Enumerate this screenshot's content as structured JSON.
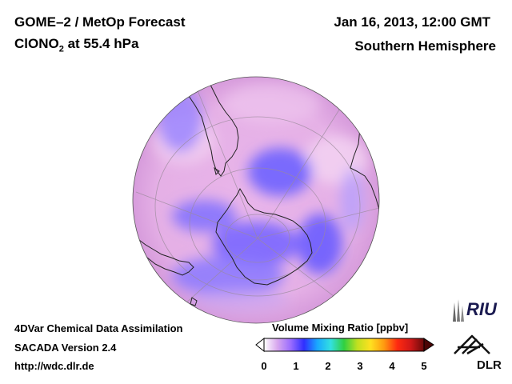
{
  "header": {
    "title_line1": "GOME–2 / MetOp Forecast",
    "title_line2_prefix": "ClONO",
    "title_line2_sub": "2",
    "title_line2_suffix": " at 55.4 hPa",
    "date": "Jan 16, 2013, 12:00 GMT",
    "region": "Southern Hemisphere"
  },
  "footer": {
    "line1": "4DVar Chemical Data Assimilation",
    "line2": "SACADA Version 2.4",
    "line3": "http://wdc.dlr.de"
  },
  "colorbar": {
    "title": "Volume Mixing Ratio [ppbv]",
    "ticks": [
      "0",
      "1",
      "2",
      "3",
      "4",
      "5"
    ],
    "colors": [
      "#ffffff",
      "#d8a8ee",
      "#9a6cff",
      "#2f2fff",
      "#19a8ff",
      "#33e0e0",
      "#30d040",
      "#c0e020",
      "#ffe020",
      "#ff9a10",
      "#ff2a10",
      "#d01818",
      "#6a0a0a"
    ]
  },
  "logos": {
    "riu": "RIU",
    "dlr": "DLR"
  },
  "colors": {
    "globe_base": "#e4aee6",
    "low_value": "#7e6cff",
    "coast": "#222222",
    "grid": "#9a8a9a"
  },
  "map": {
    "projection": "orthographic",
    "hemisphere": "south"
  }
}
